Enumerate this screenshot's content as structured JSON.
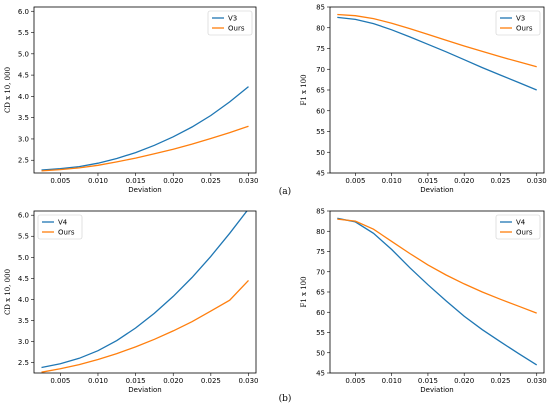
{
  "panel_labels": [
    "(a)",
    "(b)"
  ],
  "chart_data": [
    {
      "type": "line",
      "xlabel": "Deviation",
      "ylabel": "CD x 10, 000",
      "xlim": [
        0.0015,
        0.031
      ],
      "ylim": [
        2.2,
        6.1
      ],
      "xticks": [
        "0.005",
        "0.010",
        "0.015",
        "0.020",
        "0.025",
        "0.030"
      ],
      "yticks": [
        "2.5",
        "3.0",
        "3.5",
        "4.0",
        "4.5",
        "5.0",
        "5.5",
        "6.0"
      ],
      "legend_position": "top-right",
      "x": [
        0.0025,
        0.005,
        0.0075,
        0.01,
        0.0125,
        0.015,
        0.0175,
        0.02,
        0.0225,
        0.025,
        0.0275,
        0.03
      ],
      "series": [
        {
          "name": "V3",
          "color": "#1f77b4",
          "values": [
            2.27,
            2.3,
            2.35,
            2.43,
            2.54,
            2.68,
            2.85,
            3.05,
            3.28,
            3.55,
            3.87,
            4.23
          ]
        },
        {
          "name": "Ours",
          "color": "#ff7f0e",
          "values": [
            2.25,
            2.28,
            2.32,
            2.38,
            2.46,
            2.55,
            2.65,
            2.76,
            2.88,
            3.01,
            3.15,
            3.3
          ]
        }
      ]
    },
    {
      "type": "line",
      "xlabel": "Deviation",
      "ylabel": "F1 x 100",
      "xlim": [
        0.0015,
        0.031
      ],
      "ylim": [
        45,
        85
      ],
      "xticks": [
        "0.005",
        "0.010",
        "0.015",
        "0.020",
        "0.025",
        "0.030"
      ],
      "yticks": [
        "45",
        "50",
        "55",
        "60",
        "65",
        "70",
        "75",
        "80",
        "85"
      ],
      "legend_position": "top-right",
      "x": [
        0.0025,
        0.005,
        0.0075,
        0.01,
        0.0125,
        0.015,
        0.0175,
        0.02,
        0.0225,
        0.025,
        0.0275,
        0.03
      ],
      "series": [
        {
          "name": "V3",
          "color": "#1f77b4",
          "values": [
            82.5,
            82.0,
            81.0,
            79.5,
            77.8,
            76.0,
            74.2,
            72.3,
            70.4,
            68.6,
            66.8,
            65.0
          ]
        },
        {
          "name": "Ours",
          "color": "#ff7f0e",
          "values": [
            83.2,
            82.9,
            82.2,
            81.1,
            79.8,
            78.4,
            77.0,
            75.6,
            74.3,
            73.0,
            71.8,
            70.6
          ]
        }
      ]
    },
    {
      "type": "line",
      "xlabel": "Deviation",
      "ylabel": "CD x 10, 000",
      "xlim": [
        0.0015,
        0.031
      ],
      "ylim": [
        2.25,
        6.1
      ],
      "xticks": [
        "0.005",
        "0.010",
        "0.015",
        "0.020",
        "0.025",
        "0.030"
      ],
      "yticks": [
        "2.5",
        "3.0",
        "3.5",
        "4.0",
        "4.5",
        "5.0",
        "5.5",
        "6.0"
      ],
      "legend_position": "top-left",
      "x": [
        0.0025,
        0.005,
        0.0075,
        0.01,
        0.0125,
        0.015,
        0.0175,
        0.02,
        0.0225,
        0.025,
        0.0275,
        0.03
      ],
      "series": [
        {
          "name": "V4",
          "color": "#1f77b4",
          "values": [
            2.38,
            2.47,
            2.6,
            2.78,
            3.02,
            3.32,
            3.67,
            4.07,
            4.52,
            5.02,
            5.57,
            6.15
          ]
        },
        {
          "name": "Ours",
          "color": "#ff7f0e",
          "values": [
            2.27,
            2.35,
            2.45,
            2.57,
            2.71,
            2.87,
            3.05,
            3.25,
            3.47,
            3.72,
            3.98,
            4.45
          ]
        }
      ]
    },
    {
      "type": "line",
      "xlabel": "Deviation",
      "ylabel": "F1 x 100",
      "xlim": [
        0.0015,
        0.031
      ],
      "ylim": [
        45,
        85
      ],
      "xticks": [
        "0.005",
        "0.010",
        "0.015",
        "0.020",
        "0.025",
        "0.030"
      ],
      "yticks": [
        "45",
        "50",
        "55",
        "60",
        "65",
        "70",
        "75",
        "80",
        "85"
      ],
      "legend_position": "top-right",
      "x": [
        0.0025,
        0.005,
        0.0075,
        0.01,
        0.0125,
        0.015,
        0.0175,
        0.02,
        0.0225,
        0.025,
        0.0275,
        0.03
      ],
      "series": [
        {
          "name": "V4",
          "color": "#1f77b4",
          "values": [
            83.2,
            82.3,
            79.5,
            75.5,
            71.0,
            66.8,
            62.8,
            59.0,
            55.7,
            52.7,
            49.8,
            47.0
          ]
        },
        {
          "name": "Ours",
          "color": "#ff7f0e",
          "values": [
            83.0,
            82.5,
            80.5,
            77.5,
            74.5,
            71.7,
            69.2,
            67.0,
            65.0,
            63.2,
            61.5,
            59.8
          ]
        }
      ]
    }
  ]
}
